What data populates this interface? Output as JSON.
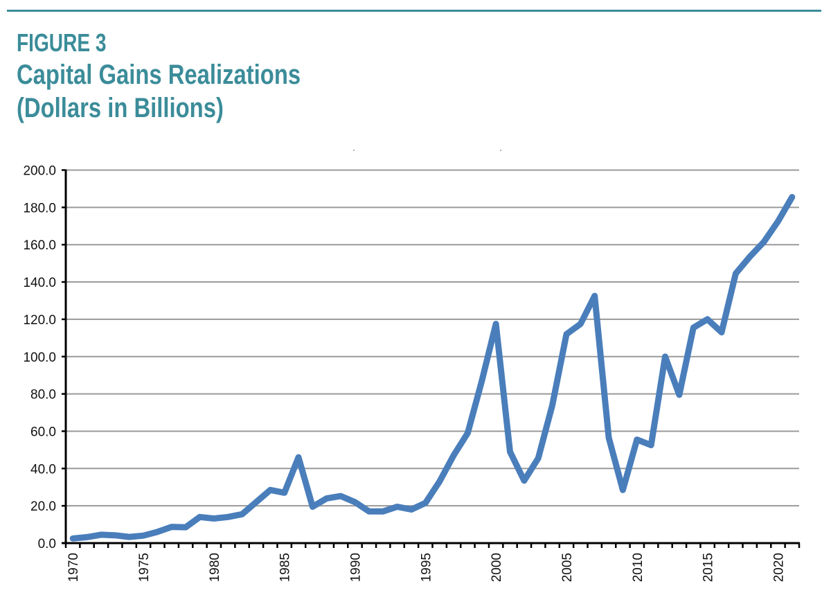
{
  "figure": {
    "label": "FIGURE 3",
    "title": "Capital Gains Realizations",
    "subtitle": "(Dollars in Billions)",
    "accent_color": "#3b8c99"
  },
  "chart_data": {
    "type": "line",
    "title": "Capital Gains Realizations (Dollars in Billions)",
    "xlabel": "",
    "ylabel": "",
    "ylim": [
      0,
      200
    ],
    "grid": true,
    "legend": "none",
    "line_color": "#4a7ebb",
    "y_ticks": [
      "0.0",
      "20.0",
      "40.0",
      "60.0",
      "80.0",
      "100.0",
      "120.0",
      "140.0",
      "160.0",
      "180.0",
      "200.0"
    ],
    "x_tick_labels": [
      "1970",
      "1975",
      "1980",
      "1985",
      "1990",
      "1995",
      "2000",
      "2005",
      "2010",
      "2015",
      "2020"
    ],
    "x": [
      1970,
      1971,
      1972,
      1973,
      1974,
      1975,
      1976,
      1977,
      1978,
      1979,
      1980,
      1981,
      1982,
      1983,
      1984,
      1985,
      1986,
      1987,
      1988,
      1989,
      1990,
      1991,
      1992,
      1993,
      1994,
      1995,
      1996,
      1997,
      1998,
      1999,
      2000,
      2001,
      2002,
      2003,
      2004,
      2005,
      2006,
      2007,
      2008,
      2009,
      2010,
      2011,
      2012,
      2013,
      2014,
      2015,
      2016,
      2017,
      2018,
      2019,
      2020,
      2021
    ],
    "series": [
      {
        "name": "Capital Gains Realizations",
        "values": [
          2.5,
          3.2,
          4.5,
          4.2,
          3.3,
          4.0,
          6.0,
          8.7,
          8.5,
          14.0,
          13.2,
          14.0,
          15.5,
          22.0,
          28.5,
          27.0,
          46.0,
          19.5,
          24.0,
          25.2,
          22.0,
          17.0,
          17.0,
          19.5,
          18.0,
          21.5,
          33.0,
          47.0,
          59.0,
          87.0,
          117.5,
          49.0,
          33.5,
          45.5,
          74.0,
          112.0,
          117.5,
          132.5,
          56.5,
          28.5,
          55.5,
          52.5,
          100.0,
          79.5,
          115.5,
          120.0,
          113.0,
          144.5,
          153.5,
          161.5,
          172.5,
          185.5
        ]
      }
    ]
  }
}
